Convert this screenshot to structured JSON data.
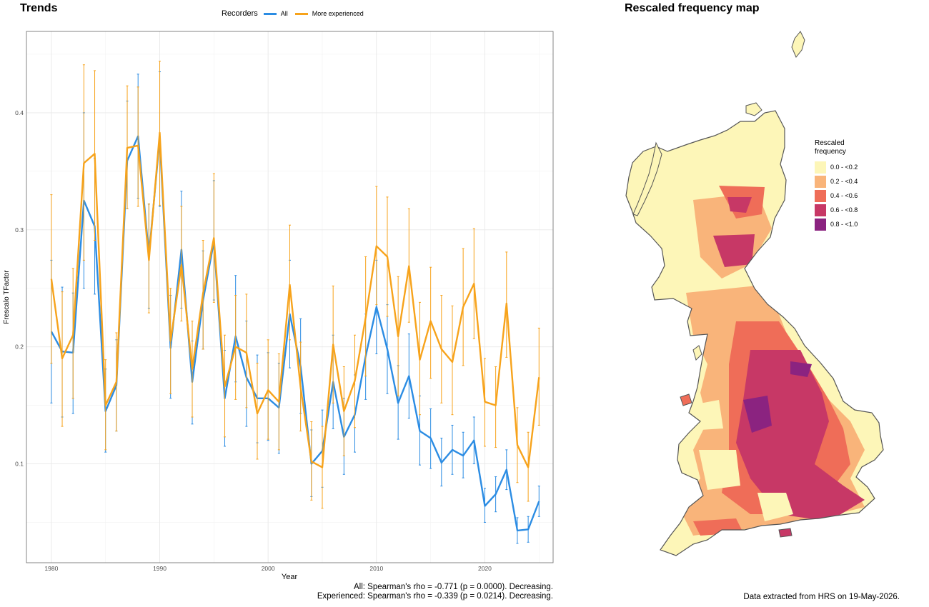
{
  "left_panel": {
    "title": "Trends"
  },
  "legend": {
    "title": "Recorders",
    "items": [
      {
        "label": "All",
        "color": "#2b8ce3"
      },
      {
        "label": "More experienced",
        "color": "#f7a31b"
      }
    ]
  },
  "stats": {
    "line1": "All: Spearman's rho = -0.771 (p = 0.0000). Decreasing.",
    "line2": "Experienced: Spearman's rho = -0.339 (p = 0.0214). Decreasing."
  },
  "map_panel": {
    "title": "Rescaled frequency map",
    "legend_title_line1": "Rescaled",
    "legend_title_line2": "frequency",
    "bins": [
      {
        "label": "0.0 - <0.2",
        "color": "#fdf6b8"
      },
      {
        "label": "0.2 - <0.4",
        "color": "#f9b47a"
      },
      {
        "label": "0.4 - <0.6",
        "color": "#ef6d58"
      },
      {
        "label": "0.6 - <0.8",
        "color": "#c73866"
      },
      {
        "label": "0.8 - <1.0",
        "color": "#8b2380"
      }
    ]
  },
  "footer_note": "Data extracted from HRS on 19-May-2026.",
  "chart_data": {
    "type": "line",
    "xlabel": "Year",
    "ylabel": "Frescalo TFactor",
    "xlim": [
      1977.7,
      2026.3
    ],
    "ylim": [
      0.0155,
      0.4695
    ],
    "xticks": [
      1980,
      1990,
      2000,
      2010,
      2020
    ],
    "yticks": [
      0.1,
      0.2,
      0.3,
      0.4
    ],
    "grid": true,
    "legend_position": "top",
    "x": [
      1980,
      1981,
      1982,
      1983,
      1984,
      1985,
      1986,
      1987,
      1988,
      1989,
      1990,
      1991,
      1992,
      1993,
      1994,
      1995,
      1996,
      1997,
      1998,
      1999,
      2000,
      2001,
      2002,
      2003,
      2004,
      2005,
      2006,
      2007,
      2008,
      2009,
      2010,
      2011,
      2012,
      2013,
      2014,
      2015,
      2016,
      2017,
      2018,
      2019,
      2020,
      2021,
      2022,
      2023,
      2024,
      2025
    ],
    "series": [
      {
        "name": "All",
        "color": "#2b8ce3",
        "values": [
          0.213,
          0.196,
          0.195,
          0.325,
          0.303,
          0.145,
          0.167,
          0.359,
          0.38,
          0.278,
          0.378,
          0.199,
          0.283,
          0.17,
          0.24,
          0.29,
          0.156,
          0.209,
          0.174,
          0.156,
          0.156,
          0.148,
          0.228,
          0.183,
          0.1,
          0.111,
          0.17,
          0.123,
          0.142,
          0.192,
          0.234,
          0.198,
          0.152,
          0.175,
          0.128,
          0.122,
          0.101,
          0.112,
          0.107,
          0.12,
          0.064,
          0.074,
          0.095,
          0.043,
          0.044,
          0.068
        ],
        "lower": [
          0.152,
          0.14,
          0.143,
          0.25,
          0.245,
          0.11,
          0.128,
          0.318,
          0.327,
          0.233,
          0.32,
          0.156,
          0.233,
          0.134,
          0.198,
          0.24,
          0.115,
          0.17,
          0.132,
          0.118,
          0.12,
          0.109,
          0.182,
          0.143,
          0.072,
          0.08,
          0.13,
          0.091,
          0.11,
          0.155,
          0.194,
          0.16,
          0.121,
          0.139,
          0.099,
          0.096,
          0.081,
          0.091,
          0.088,
          0.1,
          0.05,
          0.059,
          0.078,
          0.032,
          0.033,
          0.055
        ],
        "upper": [
          0.274,
          0.251,
          0.246,
          0.4,
          0.361,
          0.181,
          0.206,
          0.41,
          0.433,
          0.322,
          0.435,
          0.244,
          0.333,
          0.205,
          0.282,
          0.342,
          0.197,
          0.261,
          0.222,
          0.193,
          0.195,
          0.186,
          0.274,
          0.224,
          0.129,
          0.146,
          0.21,
          0.156,
          0.176,
          0.228,
          0.274,
          0.236,
          0.184,
          0.211,
          0.158,
          0.147,
          0.122,
          0.133,
          0.127,
          0.14,
          0.079,
          0.089,
          0.112,
          0.054,
          0.055,
          0.081
        ]
      },
      {
        "name": "More experienced",
        "color": "#f7a31b",
        "values": [
          0.258,
          0.19,
          0.21,
          0.357,
          0.365,
          0.15,
          0.17,
          0.37,
          0.372,
          0.274,
          0.383,
          0.205,
          0.27,
          0.181,
          0.246,
          0.293,
          0.166,
          0.2,
          0.195,
          0.143,
          0.163,
          0.153,
          0.253,
          0.165,
          0.102,
          0.097,
          0.202,
          0.145,
          0.171,
          0.225,
          0.286,
          0.277,
          0.209,
          0.269,
          0.189,
          0.222,
          0.198,
          0.187,
          0.234,
          0.254,
          0.153,
          0.15,
          0.237,
          0.116,
          0.097,
          0.174
        ],
        "lower": [
          0.186,
          0.132,
          0.156,
          0.274,
          0.291,
          0.112,
          0.128,
          0.318,
          0.32,
          0.229,
          0.321,
          0.16,
          0.222,
          0.14,
          0.198,
          0.238,
          0.123,
          0.155,
          0.148,
          0.104,
          0.121,
          0.112,
          0.206,
          0.128,
          0.069,
          0.062,
          0.152,
          0.107,
          0.131,
          0.175,
          0.236,
          0.226,
          0.158,
          0.221,
          0.142,
          0.173,
          0.152,
          0.142,
          0.184,
          0.207,
          0.115,
          0.114,
          0.191,
          0.084,
          0.068,
          0.133
        ],
        "upper": [
          0.33,
          0.247,
          0.267,
          0.441,
          0.436,
          0.189,
          0.212,
          0.423,
          0.422,
          0.322,
          0.444,
          0.25,
          0.32,
          0.222,
          0.291,
          0.348,
          0.21,
          0.244,
          0.245,
          0.186,
          0.206,
          0.194,
          0.304,
          0.204,
          0.136,
          0.132,
          0.252,
          0.183,
          0.21,
          0.277,
          0.337,
          0.328,
          0.26,
          0.318,
          0.238,
          0.268,
          0.244,
          0.235,
          0.284,
          0.301,
          0.19,
          0.183,
          0.281,
          0.148,
          0.127,
          0.216
        ]
      }
    ]
  }
}
